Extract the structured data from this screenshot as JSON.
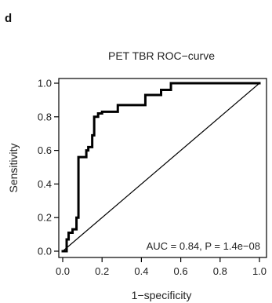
{
  "panel_label": "d",
  "chart_data": {
    "type": "line",
    "title": "PET TBR ROC−curve",
    "xlabel": "1−specificity",
    "ylabel": "Sensitivity",
    "xlim": [
      0,
      1
    ],
    "ylim": [
      0,
      1
    ],
    "x_ticks": [
      0.0,
      0.2,
      0.4,
      0.6,
      0.8,
      1.0
    ],
    "x_tick_labels": [
      "0.0",
      "0.2",
      "0.4",
      "0.6",
      "0.8",
      "1.0"
    ],
    "y_ticks": [
      0.0,
      0.2,
      0.4,
      0.6,
      0.8,
      1.0
    ],
    "y_tick_labels": [
      "0.0",
      "0.2",
      "0.4",
      "0.6",
      "0.8",
      "1.0"
    ],
    "grid": false,
    "annotation": "AUC = 0.84, P = 1.4e−08",
    "series": [
      {
        "x": [
          0.0,
          0.02,
          0.02,
          0.03,
          0.03,
          0.05,
          0.05,
          0.07,
          0.07,
          0.08,
          0.08,
          0.12,
          0.12,
          0.13,
          0.13,
          0.15,
          0.15,
          0.16,
          0.16,
          0.18,
          0.18,
          0.2,
          0.2,
          0.28,
          0.28,
          0.42,
          0.42,
          0.5,
          0.5,
          0.55,
          0.55,
          1.0
        ],
        "y": [
          0.0,
          0.0,
          0.07,
          0.07,
          0.11,
          0.11,
          0.13,
          0.13,
          0.2,
          0.2,
          0.56,
          0.56,
          0.6,
          0.6,
          0.62,
          0.62,
          0.69,
          0.69,
          0.8,
          0.8,
          0.82,
          0.82,
          0.83,
          0.83,
          0.87,
          0.87,
          0.93,
          0.93,
          0.96,
          0.96,
          1.0,
          1.0
        ],
        "color": "#000000"
      },
      {
        "x": [
          0,
          1
        ],
        "y": [
          0,
          1
        ],
        "color": "#000000"
      }
    ]
  }
}
